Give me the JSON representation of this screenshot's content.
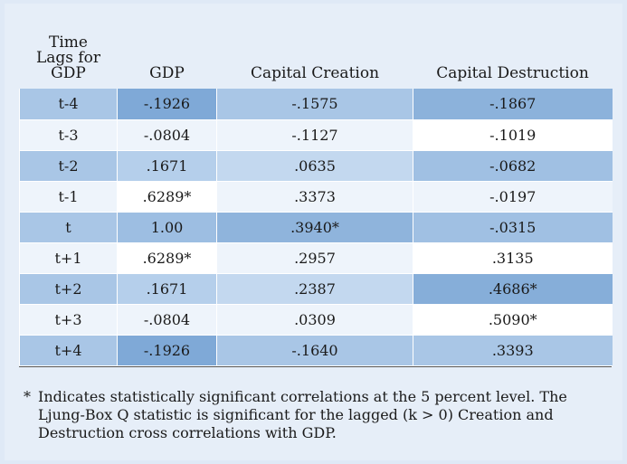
{
  "table": {
    "headers": [
      "Time\nLags for\nGDP",
      "GDP",
      "Capital Creation",
      "Capital Destruction"
    ],
    "rows": [
      {
        "lag": "t-4",
        "gdp": "-.1926",
        "creation": "-.1575",
        "destruction": "-.1867",
        "colors": [
          "#a9c6e6",
          "#7fa9d7",
          "#a9c6e6",
          "#8cb2db"
        ]
      },
      {
        "lag": "t-3",
        "gdp": "-.0804",
        "creation": "-.1127",
        "destruction": "-.1019",
        "colors": [
          "#eef4fb",
          "#eef4fb",
          "#eef4fb",
          "#ffffff"
        ]
      },
      {
        "lag": "t-2",
        "gdp": ".1671",
        "creation": ".0635",
        "destruction": "-.0682",
        "colors": [
          "#a9c6e6",
          "#b5cfeb",
          "#c3d8ef",
          "#a0c0e3"
        ]
      },
      {
        "lag": "t-1",
        "gdp": ".6289*",
        "creation": ".3373",
        "destruction": "-.0197",
        "colors": [
          "#eef4fb",
          "#ffffff",
          "#eef4fb",
          "#eef4fb"
        ]
      },
      {
        "lag": "t",
        "gdp": "1.00",
        "creation": ".3940*",
        "destruction": "-.0315",
        "colors": [
          "#a9c6e6",
          "#9dbee2",
          "#8fb4dc",
          "#a0c0e3"
        ]
      },
      {
        "lag": "t+1",
        "gdp": ".6289*",
        "creation": ".2957",
        "destruction": ".3135",
        "colors": [
          "#eef4fb",
          "#ffffff",
          "#eef4fb",
          "#ffffff"
        ]
      },
      {
        "lag": "t+2",
        "gdp": ".1671",
        "creation": ".2387",
        "destruction": ".4686*",
        "colors": [
          "#a9c6e6",
          "#b5cfeb",
          "#c3d8ef",
          "#86aed9"
        ]
      },
      {
        "lag": "t+3",
        "gdp": "-.0804",
        "creation": ".0309",
        "destruction": ".5090*",
        "colors": [
          "#eef4fb",
          "#eef4fb",
          "#eef4fb",
          "#ffffff"
        ]
      },
      {
        "lag": "t+4",
        "gdp": "-.1926",
        "creation": "-.1640",
        "destruction": ".3393",
        "colors": [
          "#a9c6e6",
          "#7fa9d7",
          "#a9c6e6",
          "#a9c6e6"
        ]
      }
    ]
  },
  "footnote": {
    "mark": "*",
    "text": "Indicates statistically significant correlations at the 5 percent level. The Ljung-Box Q statistic is significant for the lagged (k > 0) Creation and Destruction cross correlations with GDP."
  }
}
